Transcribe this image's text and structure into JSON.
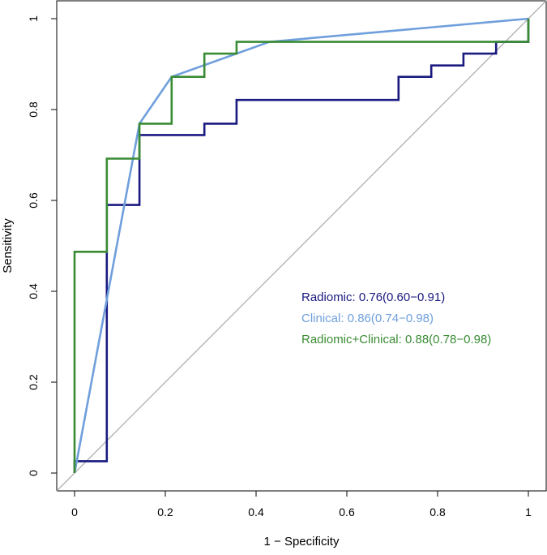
{
  "chart_data": {
    "type": "line",
    "title": "",
    "xlabel": "1 − Specificity",
    "ylabel": "Sensitivity",
    "xlim": [
      0,
      1
    ],
    "ylim": [
      0,
      1
    ],
    "xticks": [
      "0",
      "0.2",
      "0.4",
      "0.6",
      "0.8",
      "1"
    ],
    "yticks": [
      "0",
      "0.2",
      "0.4",
      "0.6",
      "0.8",
      "1"
    ],
    "grid": false,
    "legend_placement": "center-right",
    "reference_line": {
      "x": [
        0,
        1
      ],
      "y": [
        0,
        1
      ],
      "color": "#aaaaaa"
    },
    "series": [
      {
        "name": "Radiomic: 0.76(0.60−0.91)",
        "color": "#1a1a80",
        "x": [
          0,
          0,
          0.071,
          0.071,
          0.143,
          0.143,
          0.286,
          0.286,
          0.357,
          0.357,
          0.714,
          0.714,
          0.786,
          0.786,
          0.857,
          0.857,
          0.929,
          0.929,
          1,
          1
        ],
        "y": [
          0,
          0.026,
          0.026,
          0.59,
          0.59,
          0.744,
          0.744,
          0.769,
          0.769,
          0.821,
          0.821,
          0.872,
          0.872,
          0.897,
          0.897,
          0.923,
          0.923,
          0.949,
          0.949,
          1
        ]
      },
      {
        "name": "Clinical: 0.86(0.74−0.98)",
        "color": "#6f9fdc",
        "x": [
          0,
          0.143,
          0.214,
          0.429,
          1
        ],
        "y": [
          0,
          0.769,
          0.872,
          0.949,
          1
        ]
      },
      {
        "name": "Radiomic+Clinical: 0.88(0.78−0.98)",
        "color": "#3a8c34",
        "x": [
          0,
          0,
          0.071,
          0.071,
          0.143,
          0.143,
          0.214,
          0.214,
          0.286,
          0.286,
          0.357,
          0.357,
          1,
          1
        ],
        "y": [
          0,
          0.487,
          0.487,
          0.692,
          0.692,
          0.769,
          0.769,
          0.872,
          0.872,
          0.923,
          0.923,
          0.949,
          0.949,
          1
        ]
      }
    ]
  }
}
